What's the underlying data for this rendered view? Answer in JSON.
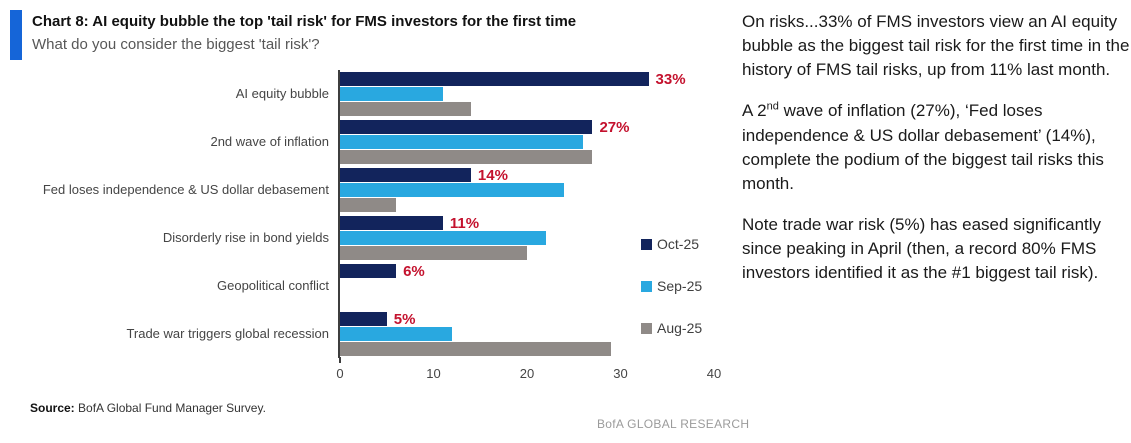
{
  "header": {
    "accent_color": "#1565d8"
  },
  "chart_data": {
    "type": "bar",
    "orientation": "horizontal",
    "title": "Chart 8: AI equity bubble the top 'tail risk' for FMS investors for the first time",
    "subtitle": "What do you consider the biggest 'tail risk'?",
    "categories": [
      "AI equity bubble",
      "2nd wave of inflation",
      "Fed loses independence & US dollar debasement",
      "Disorderly rise in bond yields",
      "Geopolitical conflict",
      "Trade war triggers global recession"
    ],
    "series": [
      {
        "name": "Oct-25",
        "color": "#12245c",
        "values": [
          33,
          27,
          14,
          11,
          6,
          5
        ],
        "labels": [
          "33%",
          "27%",
          "14%",
          "11%",
          "6%",
          "5%"
        ]
      },
      {
        "name": "Sep-25",
        "color": "#29a8e0",
        "values": [
          11,
          26,
          24,
          22,
          0,
          12
        ]
      },
      {
        "name": "Aug-25",
        "color": "#8f8a87",
        "values": [
          14,
          27,
          6,
          20,
          0,
          29
        ]
      }
    ],
    "xlim": [
      0,
      40
    ],
    "xticks": [
      0,
      10,
      20,
      30,
      40
    ],
    "value_label_color": "#c4122e",
    "legend_position": "inside-right",
    "grid": "off"
  },
  "commentary": {
    "p1": "On risks...33% of FMS investors view an AI equity bubble as the biggest tail risk for the first time in the history of FMS tail risks, up from 11% last month.",
    "p2_prefix": "A 2",
    "p2_sup": "nd",
    "p2_rest": " wave of inflation (27%), ‘Fed loses independence & US dollar debasement’ (14%), complete the podium of the biggest tail risks this month.",
    "p3": "Note trade war risk (5%) has eased significantly since peaking in April (then, a record 80% FMS investors identified it as the #1 biggest tail risk)."
  },
  "footer": {
    "source_label": "Source:",
    "source_text": " BofA Global Fund Manager Survey.",
    "brand": "BofA GLOBAL RESEARCH"
  }
}
